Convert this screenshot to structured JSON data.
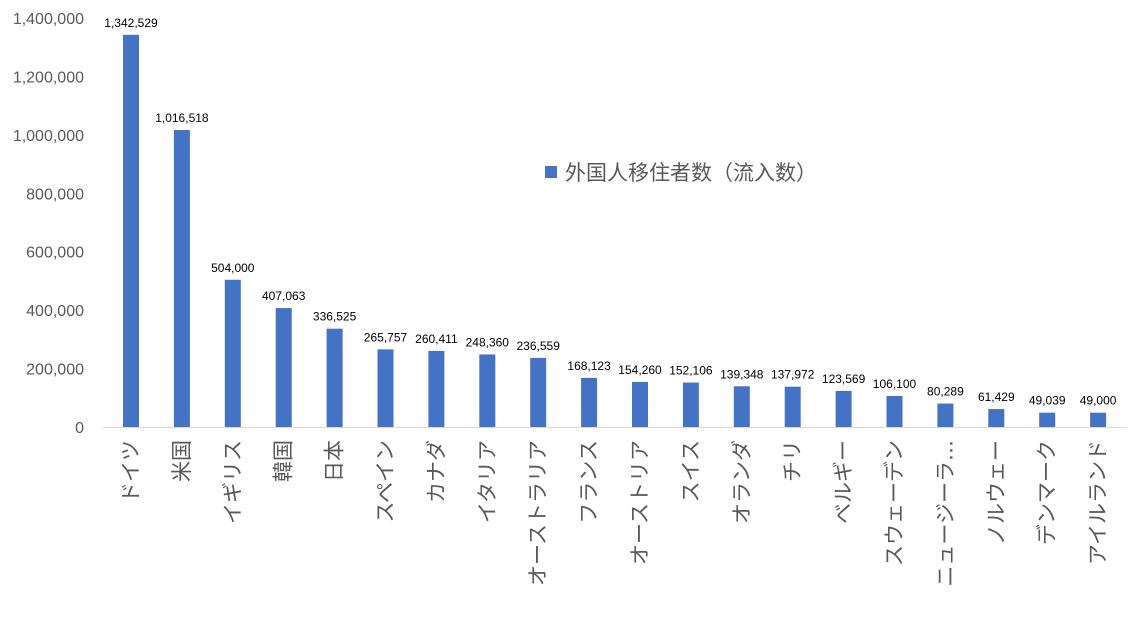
{
  "chart_data": {
    "type": "bar",
    "categories": [
      "ドイツ",
      "米国",
      "イギリス",
      "韓国",
      "日本",
      "スペイン",
      "カナダ",
      "イタリア",
      "オーストラリア",
      "フランス",
      "オーストリア",
      "スイス",
      "オランダ",
      "チリ",
      "ベルギー",
      "スウェーデン",
      "ニュージーラ…",
      "ノルウェー",
      "デンマーク",
      "アイルランド"
    ],
    "series": [
      {
        "name": "外国人移住者数（流入数）",
        "values": [
          1342529,
          1016518,
          504000,
          407063,
          336525,
          265757,
          260411,
          248360,
          236559,
          168123,
          154260,
          152106,
          139348,
          137972,
          123569,
          106100,
          80289,
          61429,
          49039,
          49000
        ],
        "data_labels": [
          "1,342,529",
          "1,016,518",
          "504,000",
          "407,063",
          "336,525",
          "265,757",
          "260,411",
          "248,360",
          "236,559",
          "168,123",
          "154,260",
          "152,106",
          "139,348",
          "137,972",
          "123,569",
          "106,100",
          "80,289",
          "61,429",
          "49,039",
          "49,000"
        ],
        "color": "#4472C4"
      }
    ],
    "y_ticks": [
      "0",
      "200,000",
      "400,000",
      "600,000",
      "800,000",
      "1,000,000",
      "1,200,000",
      "1,400,000"
    ],
    "ylim": [
      0,
      1400000
    ],
    "legend_placement": "top-right",
    "grid": false,
    "title": "",
    "xlabel": "",
    "ylabel": ""
  }
}
